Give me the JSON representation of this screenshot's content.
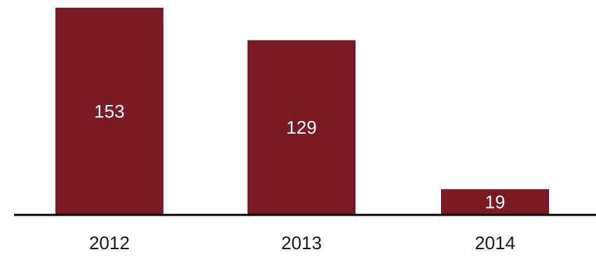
{
  "chart_data": {
    "type": "bar",
    "categories": [
      "2012",
      "2013",
      "2014"
    ],
    "values": [
      153,
      129,
      19
    ],
    "data_labels": [
      "153",
      "129",
      "19"
    ],
    "title": "",
    "xlabel": "",
    "ylabel": "",
    "ylim": [
      0,
      153
    ],
    "grid": false,
    "legend": "none",
    "colors": {
      "bar": "#7a1a22",
      "axis": "#000000",
      "value_text": "#ffffff",
      "category_text": "#1a1a1a"
    }
  }
}
